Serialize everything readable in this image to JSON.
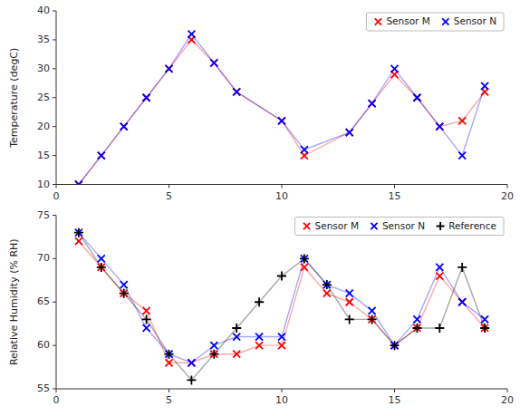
{
  "chart_data": [
    {
      "type": "line",
      "ylabel": "Temperature (degC)",
      "x": [
        1,
        2,
        3,
        4,
        5,
        6,
        7,
        8,
        10,
        11,
        13,
        14,
        15,
        16,
        17,
        18,
        19
      ],
      "series": [
        {
          "name": "Sensor M",
          "color": "#ff0000",
          "marker": "x",
          "values": [
            10,
            15,
            20,
            25,
            30,
            35,
            31,
            26,
            21,
            15,
            19,
            24,
            29,
            25,
            20,
            21,
            26
          ]
        },
        {
          "name": "Sensor N",
          "color": "#0000ff",
          "marker": "x",
          "values": [
            10,
            15,
            20,
            25,
            30,
            36,
            31,
            26,
            21,
            16,
            19,
            24,
            30,
            25,
            20,
            15,
            27
          ]
        }
      ],
      "xlim": [
        0,
        20
      ],
      "xticks": [
        0,
        5,
        10,
        15,
        20
      ],
      "ylim": [
        10,
        40
      ],
      "yticks": [
        10,
        15,
        20,
        25,
        30,
        35,
        40
      ],
      "grid": false,
      "legend": "upper right"
    },
    {
      "type": "line",
      "ylabel": "Relative Humidity (% RH)",
      "x": [
        1,
        2,
        3,
        4,
        5,
        6,
        7,
        8,
        9,
        10,
        11,
        12,
        13,
        14,
        15,
        16,
        17,
        18,
        19
      ],
      "series": [
        {
          "name": "Sensor M",
          "color": "#ff0000",
          "marker": "x",
          "values": [
            72,
            69,
            66,
            64,
            58,
            58,
            59,
            59,
            60,
            60,
            69,
            66,
            65,
            63,
            60,
            62,
            68,
            65,
            62
          ]
        },
        {
          "name": "Sensor N",
          "color": "#0000ff",
          "marker": "x",
          "values": [
            73,
            70,
            67,
            62,
            59,
            58,
            60,
            61,
            61,
            61,
            70,
            67,
            66,
            64,
            60,
            63,
            69,
            65,
            63
          ]
        },
        {
          "name": "Reference",
          "color": "#000000",
          "marker": "plus",
          "values": [
            73,
            69,
            66,
            63,
            59,
            56,
            59,
            62,
            65,
            68,
            70,
            67,
            63,
            63,
            60,
            62,
            62,
            69,
            62
          ]
        }
      ],
      "xlim": [
        0,
        20
      ],
      "xticks": [
        0,
        5,
        10,
        15,
        20
      ],
      "ylim": [
        55,
        75
      ],
      "yticks": [
        55,
        60,
        65,
        70,
        75
      ],
      "grid": false,
      "legend": "upper right"
    }
  ]
}
